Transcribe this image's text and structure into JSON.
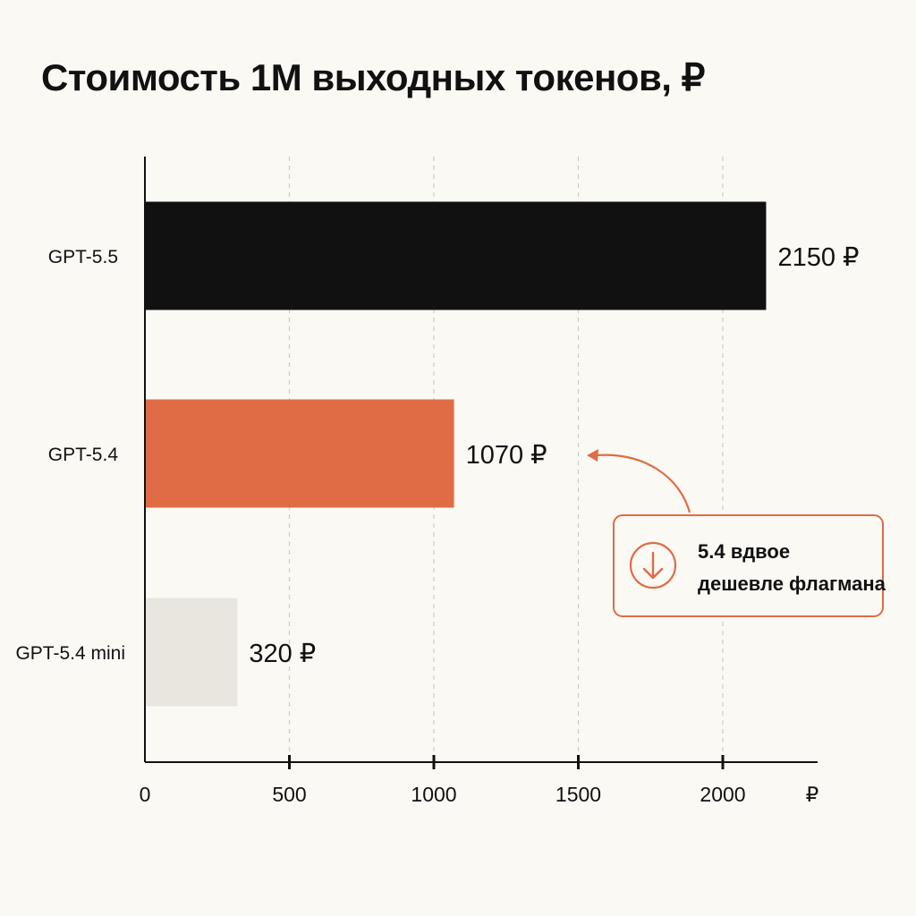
{
  "chart_data": {
    "type": "bar",
    "orientation": "horizontal",
    "title": "Стоимость 1М выходных токенов, ₽",
    "categories": [
      "GPT-5.5",
      "GPT-5.4",
      "GPT-5.4 mini"
    ],
    "values": [
      2150,
      1070,
      320
    ],
    "value_labels": [
      "2150 ₽",
      "1070 ₽",
      "320 ₽"
    ],
    "bar_colors": [
      "#111111",
      "#DF6C45",
      "#E8E6DE"
    ],
    "x_ticks": [
      0,
      500,
      1000,
      1500,
      2000
    ],
    "x_tick_labels": [
      "0",
      "500",
      "1000",
      "1500",
      "2000"
    ],
    "x_unit_label": "₽",
    "xlim": [
      0,
      2350
    ],
    "grid": "vertical dashed",
    "annotation": {
      "target_category": "GPT-5.4",
      "lines": [
        "5.4 вдвое",
        "дешевле флагмана"
      ],
      "icon": "arrow-down-circle-icon",
      "color": "#DF6C45"
    }
  }
}
